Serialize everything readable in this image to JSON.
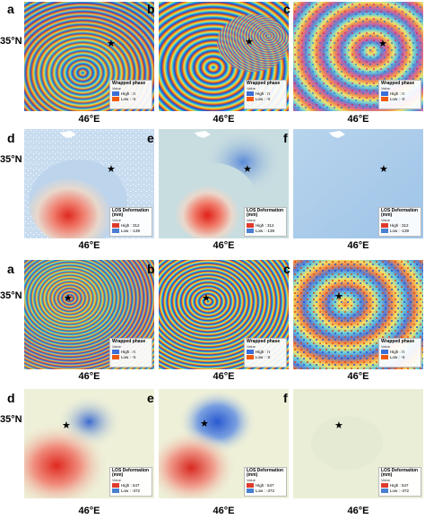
{
  "labels": {
    "lat": "35°N",
    "lon": "46°E",
    "panels": [
      "a",
      "b",
      "c",
      "d",
      "e",
      "f",
      "a",
      "b",
      "c",
      "d",
      "e",
      "f"
    ]
  },
  "legends": {
    "phase": {
      "title": "Wrapped phase",
      "subtitle": "Value",
      "high": "High : π",
      "low": "Low : -π"
    },
    "def_top_d": {
      "title": "LOS Deformation (mm)",
      "subtitle": "Value",
      "high": "High : 312",
      "low": "Low : -139"
    },
    "def_top_e": {
      "title": "LOS Deformation (mm)",
      "subtitle": "Value",
      "high": "High : 312",
      "low": "Low : -139"
    },
    "def_top_f": {
      "title": "LOS Deformation (mm)",
      "subtitle": "Value",
      "high": "High : 312",
      "low": "Low : -139"
    },
    "def_bot": {
      "title": "LOS Deformation (mm)",
      "subtitle": "Value",
      "high": "High : 547",
      "low": "Low : -372"
    }
  },
  "colors": {
    "deform_high": "#e03a2a",
    "deform_low": "#4a7fd0",
    "deform_bg": "#cfe0e0",
    "phase_high": "#3a6fd8",
    "phase_low": "#f05a10"
  },
  "icons": {
    "epicenter": "star-icon"
  }
}
